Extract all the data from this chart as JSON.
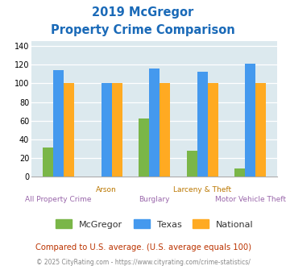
{
  "title_line1": "2019 McGregor",
  "title_line2": "Property Crime Comparison",
  "title_color": "#1a6ab8",
  "categories": [
    "All Property Crime",
    "Arson",
    "Burglary",
    "Larceny & Theft",
    "Motor Vehicle Theft"
  ],
  "mcgregor_values": [
    31,
    0,
    62,
    28,
    9
  ],
  "texas_values": [
    114,
    100,
    116,
    112,
    121
  ],
  "national_values": [
    100,
    100,
    100,
    100,
    100
  ],
  "mcgregor_color": "#7ab648",
  "texas_color": "#4499ee",
  "national_color": "#ffaa22",
  "ylim": [
    0,
    145
  ],
  "yticks": [
    0,
    20,
    40,
    60,
    80,
    100,
    120,
    140
  ],
  "plot_bg": "#dce9ee",
  "legend_labels": [
    "McGregor",
    "Texas",
    "National"
  ],
  "footnote1": "Compared to U.S. average. (U.S. average equals 100)",
  "footnote2": "© 2025 CityRating.com - https://www.cityrating.com/crime-statistics/",
  "footnote1_color": "#bb3300",
  "footnote2_color": "#888888",
  "xlabel_bottom_color": "#9966aa",
  "xlabel_top_color": "#bb7700",
  "bar_width": 0.22
}
